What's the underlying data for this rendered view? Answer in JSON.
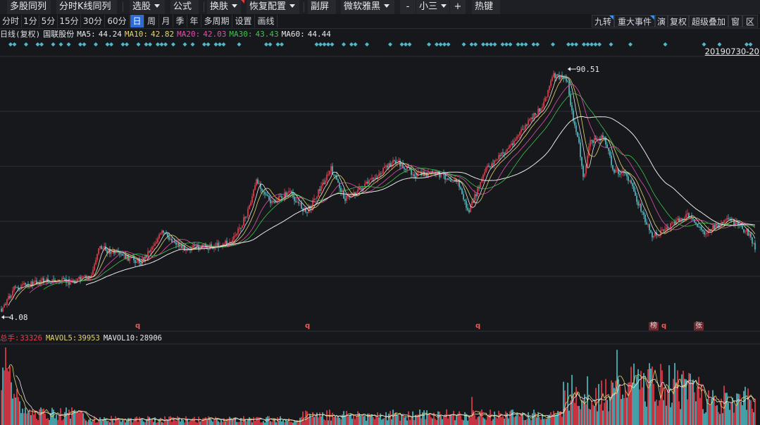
{
  "toolbar1": {
    "multi_stock": "多股同列",
    "intraday_k": "分时K线同列",
    "select_stock": "选股",
    "formula": "公式",
    "skin": "换肤",
    "restore_config": "恢复配置",
    "sub_screen": "副屏",
    "font_name": "微软雅黑",
    "font_minus": "-",
    "font_size": "小三",
    "font_plus": "+",
    "hotkey": "热键"
  },
  "periods": {
    "items": [
      "分时",
      "1分",
      "5分",
      "15分",
      "30分",
      "60分",
      "日",
      "周",
      "月",
      "季",
      "年",
      "多周期",
      "设置",
      "画线"
    ],
    "active": "日"
  },
  "right_tools": {
    "items": [
      "九转",
      "重大事件",
      "演",
      "复权",
      "超级叠加",
      "窗",
      "区"
    ]
  },
  "info": {
    "period_label": "日线(复权)",
    "stock_name": "国联股份",
    "ma5_label": "MA5:",
    "ma5": "44.24",
    "ma10_label": "MA10:",
    "ma10": "42.82",
    "ma20_label": "MA20:",
    "ma20": "42.03",
    "ma30_label": "MA30:",
    "ma30": "43.43",
    "ma60_label": "MA60:",
    "ma60": "44.44"
  },
  "date_range": "20190730-20",
  "high_label": "90.51",
  "low_label": "4.08",
  "event_markers": [
    "q",
    "q",
    "q",
    "榜",
    "q",
    "张"
  ],
  "volume": {
    "total_label": "总手:",
    "total": "33326",
    "mavol5_label": "MAVOL5:",
    "mavol5": "39953",
    "mavol10_label": "MAVOL10:",
    "mavol10": "28906"
  },
  "colors": {
    "up": "#f23b4c",
    "down": "#4fc2c8",
    "ma5": "#e8e8e8",
    "ma10": "#e2d66a",
    "ma20": "#e24fa8",
    "ma30": "#3fc24f",
    "ma60": "#e8e8e8",
    "grid": "#2c2f36",
    "accent": "#2f6bd6",
    "diamond": "#4fb8c9"
  }
}
